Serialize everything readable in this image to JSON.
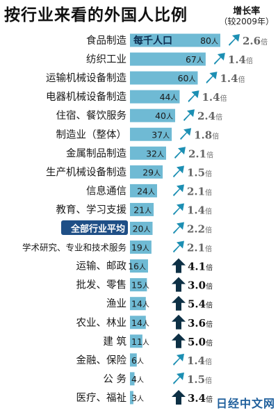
{
  "title": "按行业来看的外国人比例",
  "growth_header": {
    "line1": "增长率",
    "line2": "（较2009年）"
  },
  "callout_label": "每千人口",
  "watermark": "日经中文网",
  "value_unit": "人",
  "growth_unit": "倍",
  "colors": {
    "bar": "#6fbad4",
    "highlight_label_bg": "#1f4f86",
    "arrow_up": "#0d3045",
    "arrow_diag": "#1c8fb3",
    "growth_high": "#111111",
    "growth_low": "#666666"
  },
  "chart_data": {
    "type": "bar",
    "orientation": "horizontal",
    "title": "按行业来看的外国人比例",
    "xlim": [
      0,
      88
    ],
    "categories": [
      "食品制造",
      "纺织工业",
      "运输机械设备制造",
      "电器机械设备制造",
      "住宿、餐饮服务",
      "制造业（整体）",
      "金属制品制造",
      "生产机械设备制造",
      "信息通信",
      "教育、学习支援",
      "全部行业平均",
      "学术研究、专业和技术服务",
      "运输、邮政",
      "批发、零售",
      "渔业",
      "农业、林业",
      "建 筑",
      "金融、保险",
      "公 务",
      "医疗、福祉"
    ],
    "values": [
      80,
      67,
      60,
      44,
      40,
      37,
      32,
      29,
      24,
      21,
      20,
      19,
      16,
      15,
      14,
      14,
      11,
      6,
      4,
      3
    ],
    "value_labels": [
      "80",
      "67",
      "60",
      "44",
      "40",
      "37",
      "32",
      "29",
      "24",
      "21",
      "20",
      "19",
      "16",
      "15",
      "14",
      "14",
      "11",
      "6",
      "4",
      "3"
    ],
    "growth": [
      "2.6",
      "1.4",
      "1.4",
      "1.4",
      "2.4",
      "1.8",
      "2.1",
      "1.5",
      "2.1",
      "1.4",
      "2.2",
      "2.1",
      "4.1",
      "3.0",
      "5.4",
      "3.6",
      "5.0",
      "1.4",
      "1.5",
      "3.4"
    ],
    "highlighted_category": "全部行业平均"
  }
}
